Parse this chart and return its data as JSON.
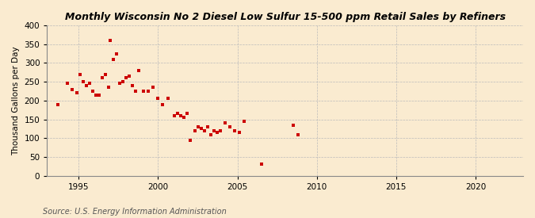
{
  "title": "Monthly Wisconsin No 2 Diesel Low Sulfur 15-500 ppm Retail Sales by Refiners",
  "ylabel": "Thousand Gallons per Day",
  "source": "Source: U.S. Energy Information Administration",
  "background_color": "#faebd0",
  "point_color": "#cc0000",
  "marker": "s",
  "marker_size": 3.5,
  "xlim": [
    1993,
    2023
  ],
  "ylim": [
    0,
    400
  ],
  "yticks": [
    0,
    50,
    100,
    150,
    200,
    250,
    300,
    350,
    400
  ],
  "xticks": [
    1995,
    2000,
    2005,
    2010,
    2015,
    2020
  ],
  "x": [
    1993.7,
    1994.3,
    1994.6,
    1994.9,
    1995.1,
    1995.3,
    1995.5,
    1995.7,
    1995.9,
    1996.1,
    1996.3,
    1996.5,
    1996.7,
    1996.9,
    1997.0,
    1997.2,
    1997.4,
    1997.6,
    1997.8,
    1998.0,
    1998.2,
    1998.4,
    1998.6,
    1998.8,
    1999.1,
    1999.4,
    1999.7,
    2000.0,
    2000.3,
    2000.6,
    2001.0,
    2001.2,
    2001.4,
    2001.6,
    2001.8,
    2002.0,
    2002.3,
    2002.5,
    2002.7,
    2002.9,
    2003.1,
    2003.3,
    2003.5,
    2003.7,
    2003.9,
    2004.2,
    2004.5,
    2004.8,
    2005.1,
    2005.4,
    2006.5,
    2008.5,
    2008.8
  ],
  "y": [
    190,
    245,
    230,
    220,
    270,
    250,
    240,
    245,
    225,
    215,
    215,
    260,
    270,
    235,
    360,
    310,
    325,
    245,
    250,
    260,
    265,
    240,
    225,
    280,
    225,
    225,
    235,
    205,
    190,
    205,
    160,
    165,
    160,
    155,
    165,
    95,
    120,
    130,
    125,
    120,
    130,
    110,
    120,
    115,
    120,
    140,
    130,
    120,
    115,
    145,
    30,
    135,
    110
  ]
}
